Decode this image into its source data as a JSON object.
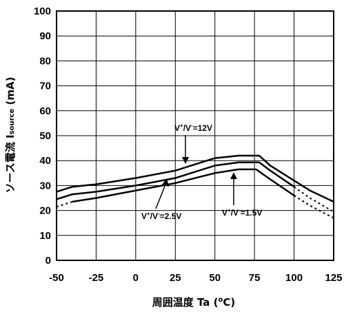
{
  "chart_data": {
    "type": "line",
    "xlabel_main": "周囲温度 Ta (",
    "xlabel_sup": "o",
    "xlabel_end": "C)",
    "ylabel_main": "ソース電流 ",
    "ylabel_sym": "I",
    "ylabel_sub": "source",
    "ylabel_end": " (mA)",
    "xlim": [
      -50,
      125
    ],
    "ylim": [
      0,
      100
    ],
    "xticks": [
      -50,
      -25,
      0,
      25,
      50,
      75,
      100,
      125
    ],
    "yticks": [
      0,
      10,
      20,
      30,
      40,
      50,
      60,
      70,
      80,
      90,
      100
    ],
    "grid": true,
    "series": [
      {
        "annotation": {
          "pre": "V",
          "sup1": "+",
          "mid": "/V",
          "sup2": "-",
          "post": "=12V"
        },
        "values": [
          [
            -50,
            27.5
          ],
          [
            -40,
            29.5
          ],
          [
            -25,
            30.5
          ],
          [
            0,
            33
          ],
          [
            25,
            36
          ],
          [
            50,
            41
          ],
          [
            65,
            42
          ],
          [
            78,
            42
          ],
          [
            85,
            38
          ],
          [
            100,
            32
          ],
          [
            110,
            28
          ],
          [
            125,
            23.5
          ]
        ],
        "dashed_from": null
      },
      {
        "annotation": {
          "pre": "V",
          "sup1": "+",
          "mid": "/V",
          "sup2": "-",
          "post": "=2.5V"
        },
        "values": [
          [
            -50,
            24.5
          ],
          [
            -40,
            26.5
          ],
          [
            -25,
            27.5
          ],
          [
            0,
            30
          ],
          [
            25,
            33
          ],
          [
            50,
            38
          ],
          [
            65,
            39.3
          ],
          [
            78,
            39.3
          ],
          [
            85,
            36
          ],
          [
            100,
            29.5
          ],
          [
            110,
            25
          ],
          [
            125,
            19.5
          ]
        ],
        "dashed_from": 100
      },
      {
        "annotation": {
          "pre": "V",
          "sup1": "+",
          "mid": "/V",
          "sup2": "-",
          "post": "=1.5V"
        },
        "values": [
          [
            -50,
            21.5
          ],
          [
            -40,
            23.5
          ],
          [
            -25,
            25
          ],
          [
            0,
            28
          ],
          [
            25,
            31
          ],
          [
            50,
            35
          ],
          [
            65,
            36.5
          ],
          [
            76,
            36.5
          ],
          [
            85,
            32.5
          ],
          [
            100,
            26
          ],
          [
            110,
            22
          ],
          [
            125,
            17
          ]
        ],
        "dashed_from": 100,
        "dashed_before": -40
      }
    ]
  }
}
